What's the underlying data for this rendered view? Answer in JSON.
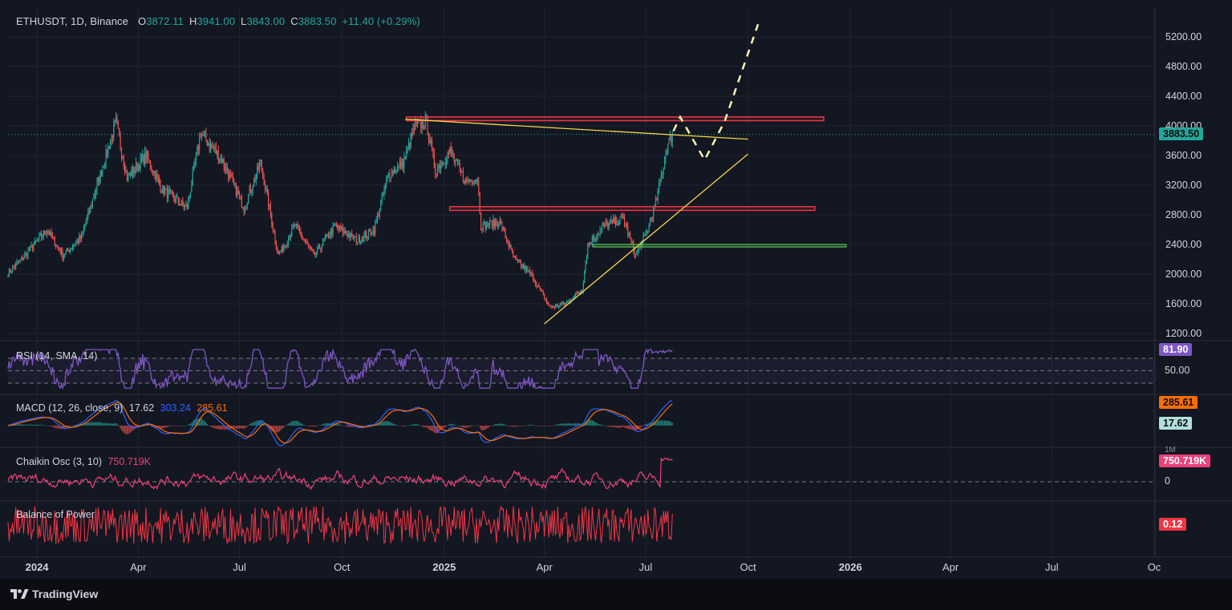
{
  "header": {
    "symbol": "ETHUSDT, 1D, Binance",
    "open_label": "O",
    "open": "3872.11",
    "high_label": "H",
    "high": "3941.00",
    "low_label": "L",
    "low": "3843.00",
    "close_label": "C",
    "close": "3883.50",
    "change": "+11.40 (+0.29%)"
  },
  "colors": {
    "background": "#131722",
    "up": "#26a69a",
    "down": "#ef5350",
    "rsi": "#7e57c2",
    "macd": "#2962ff",
    "signal": "#ff6d00",
    "chaikin": "#ec407a",
    "bop": "#f23645",
    "trendline": "#f5d547",
    "resistance": "#f23645",
    "support": "#4caf50"
  },
  "price_panel": {
    "y_ticks": [
      "5200.00",
      "4800.00",
      "4400.00",
      "4000.00",
      "3600.00",
      "3200.00",
      "2800.00",
      "2400.00",
      "2000.00",
      "1600.00",
      "1200.00"
    ],
    "last_price_tag": "3883.50"
  },
  "rsi_panel": {
    "label": "RSI (14, SMA, 14)",
    "tick": "50.00",
    "value_tag": "81.90"
  },
  "macd_panel": {
    "label": "MACD (12, 26, close, 9)",
    "hist": "17.62",
    "macd": "303.24",
    "signal": "285.61",
    "signal_tag": "285.61",
    "hist_tag": "17.62"
  },
  "chaikin_panel": {
    "label": "Chaikin Osc (3, 10)",
    "value": "750.719K",
    "value_tag": "750.719K",
    "tick_zero": "0",
    "tick_top": "1M"
  },
  "bop_panel": {
    "label": "Balance of Power",
    "value_tag": "0.12"
  },
  "x_axis": {
    "labels": [
      "2024",
      "Apr",
      "Jul",
      "Oct",
      "2025",
      "Apr",
      "Jul",
      "Oct",
      "2026",
      "Apr",
      "Jul",
      "Oc"
    ]
  },
  "brand": {
    "name": "TradingView"
  },
  "chart_data": {
    "type": "candlestick",
    "symbol": "ETHUSDT",
    "interval": "1D",
    "exchange": "Binance",
    "ohlc_last": {
      "open": 3872.11,
      "high": 3941.0,
      "low": 3843.0,
      "close": 3883.5,
      "change": 11.4,
      "change_pct": 0.29
    },
    "ylim": [
      1100,
      5450
    ],
    "xlim": [
      "2023-12-06",
      "2026-10-01"
    ],
    "price_path": [
      [
        "2023-12-06",
        2020
      ],
      [
        "2023-12-20",
        2230
      ],
      [
        "2024-01-10",
        2600
      ],
      [
        "2024-01-24",
        2250
      ],
      [
        "2024-02-10",
        2500
      ],
      [
        "2024-02-28",
        3400
      ],
      [
        "2024-03-12",
        4050
      ],
      [
        "2024-03-22",
        3300
      ],
      [
        "2024-04-08",
        3600
      ],
      [
        "2024-04-22",
        3150
      ],
      [
        "2024-05-05",
        3000
      ],
      [
        "2024-05-15",
        2900
      ],
      [
        "2024-05-27",
        3900
      ],
      [
        "2024-06-15",
        3550
      ],
      [
        "2024-07-05",
        2900
      ],
      [
        "2024-07-20",
        3500
      ],
      [
        "2024-08-05",
        2250
      ],
      [
        "2024-08-20",
        2650
      ],
      [
        "2024-09-06",
        2250
      ],
      [
        "2024-09-25",
        2650
      ],
      [
        "2024-10-15",
        2450
      ],
      [
        "2024-10-30",
        2600
      ],
      [
        "2024-11-12",
        3350
      ],
      [
        "2024-11-25",
        3500
      ],
      [
        "2024-12-06",
        4000
      ],
      [
        "2024-12-16",
        4050
      ],
      [
        "2024-12-24",
        3400
      ],
      [
        "2025-01-06",
        3650
      ],
      [
        "2025-01-20",
        3250
      ],
      [
        "2025-01-31",
        3300
      ],
      [
        "2025-02-03",
        2650
      ],
      [
        "2025-02-20",
        2700
      ],
      [
        "2025-03-05",
        2200
      ],
      [
        "2025-03-20",
        2000
      ],
      [
        "2025-04-06",
        1550
      ],
      [
        "2025-04-20",
        1600
      ],
      [
        "2025-05-05",
        1800
      ],
      [
        "2025-05-10",
        2400
      ],
      [
        "2025-05-25",
        2650
      ],
      [
        "2025-06-11",
        2750
      ],
      [
        "2025-06-22",
        2250
      ],
      [
        "2025-07-03",
        2600
      ],
      [
        "2025-07-10",
        2950
      ],
      [
        "2025-07-20",
        3700
      ],
      [
        "2025-07-25",
        3883.5
      ]
    ],
    "annotations": {
      "resistance_zone_upper": [
        4070,
        4120
      ],
      "resistance_zone_lower": [
        2860,
        2910
      ],
      "support_zone": [
        2370,
        2400
      ],
      "descending_trendline": [
        [
          "2024-11-27",
          4090
        ],
        [
          "2025-10-01",
          3820
        ]
      ],
      "ascending_trendline": [
        [
          "2025-04-01",
          1330
        ],
        [
          "2025-10-01",
          3620
        ]
      ],
      "projection_path": [
        [
          "2025-07-26",
          3930
        ],
        [
          "2025-08-01",
          4120
        ],
        [
          "2025-08-23",
          3540
        ],
        [
          "2025-09-10",
          4060
        ],
        [
          "2025-10-10",
          5370
        ]
      ]
    },
    "indicators": {
      "rsi": {
        "period": 14,
        "smoothing": "SMA",
        "smoothing_length": 14,
        "last": 81.9,
        "levels": [
          70,
          50,
          30
        ]
      },
      "macd": {
        "fast": 12,
        "slow": 26,
        "source": "close",
        "signal": 9,
        "hist": 17.62,
        "macd": 303.24,
        "signal_value": 285.61
      },
      "chaikin_osc": {
        "fast": 3,
        "slow": 10,
        "last": "750.719K"
      },
      "balance_of_power": {
        "last": 0.12
      }
    }
  }
}
